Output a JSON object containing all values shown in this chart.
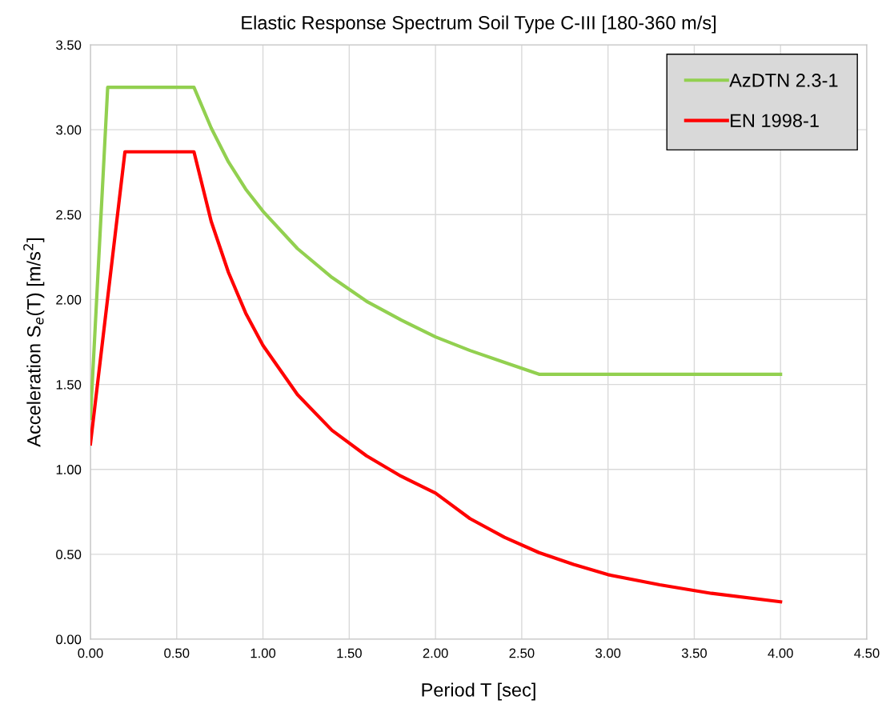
{
  "chart_data": {
    "type": "line",
    "title": "Elastic Response Spectrum Soil Type C-III [180-360 m/s]",
    "xlabel": "Period T [sec]",
    "ylabel": "Acceleration S$_{e}$(T) [m/s$^{2}$]",
    "series": [
      {
        "name": "AzDTN 2.3-1",
        "color": "#92d050",
        "x": [
          0,
          0.1,
          0.6,
          0.7,
          0.8,
          0.9,
          1.0,
          1.2,
          1.4,
          1.6,
          1.8,
          2.0,
          2.2,
          2.4,
          2.6,
          3.0,
          3.5,
          4.0
        ],
        "values": [
          1.3,
          3.25,
          3.25,
          3.01,
          2.81,
          2.65,
          2.52,
          2.3,
          2.13,
          1.99,
          1.88,
          1.78,
          1.7,
          1.63,
          1.56,
          1.56,
          1.56,
          1.56
        ]
      },
      {
        "name": "EN 1998-1",
        "color": "#ff0000",
        "x": [
          0,
          0.2,
          0.6,
          0.7,
          0.8,
          0.9,
          1.0,
          1.2,
          1.4,
          1.6,
          1.8,
          2.0,
          2.2,
          2.4,
          2.6,
          2.8,
          3.0,
          3.3,
          3.6,
          4.0
        ],
        "values": [
          1.15,
          2.87,
          2.87,
          2.46,
          2.16,
          1.92,
          1.73,
          1.44,
          1.23,
          1.08,
          0.96,
          0.86,
          0.71,
          0.6,
          0.51,
          0.44,
          0.38,
          0.32,
          0.27,
          0.22
        ]
      }
    ],
    "xlim": [
      0,
      4.5
    ],
    "xticks": [
      {
        "value": 0,
        "label": "0.00"
      },
      {
        "value": 0.5,
        "label": "0.50"
      },
      {
        "value": 1,
        "label": "1.00"
      },
      {
        "value": 1.5,
        "label": "1.50"
      },
      {
        "value": 2,
        "label": "2.00"
      },
      {
        "value": 2.5,
        "label": "2.50"
      },
      {
        "value": 3,
        "label": "3.00"
      },
      {
        "value": 3.5,
        "label": "3.50"
      },
      {
        "value": 4,
        "label": "4.00"
      },
      {
        "value": 4.5,
        "label": "4.50"
      }
    ],
    "ylim": [
      0,
      3.5
    ],
    "yticks": [
      {
        "value": 0,
        "label": "0.00"
      },
      {
        "value": 0.5,
        "label": "0.50"
      },
      {
        "value": 1,
        "label": "1.00"
      },
      {
        "value": 1.5,
        "label": "1.50"
      },
      {
        "value": 2,
        "label": "2.00"
      },
      {
        "value": 2.5,
        "label": "2.50"
      },
      {
        "value": 3,
        "label": "3.00"
      },
      {
        "value": 3.5,
        "label": "3.50"
      }
    ],
    "grid": true,
    "legend": "top right",
    "marker": "none",
    "line_style": "solid"
  }
}
